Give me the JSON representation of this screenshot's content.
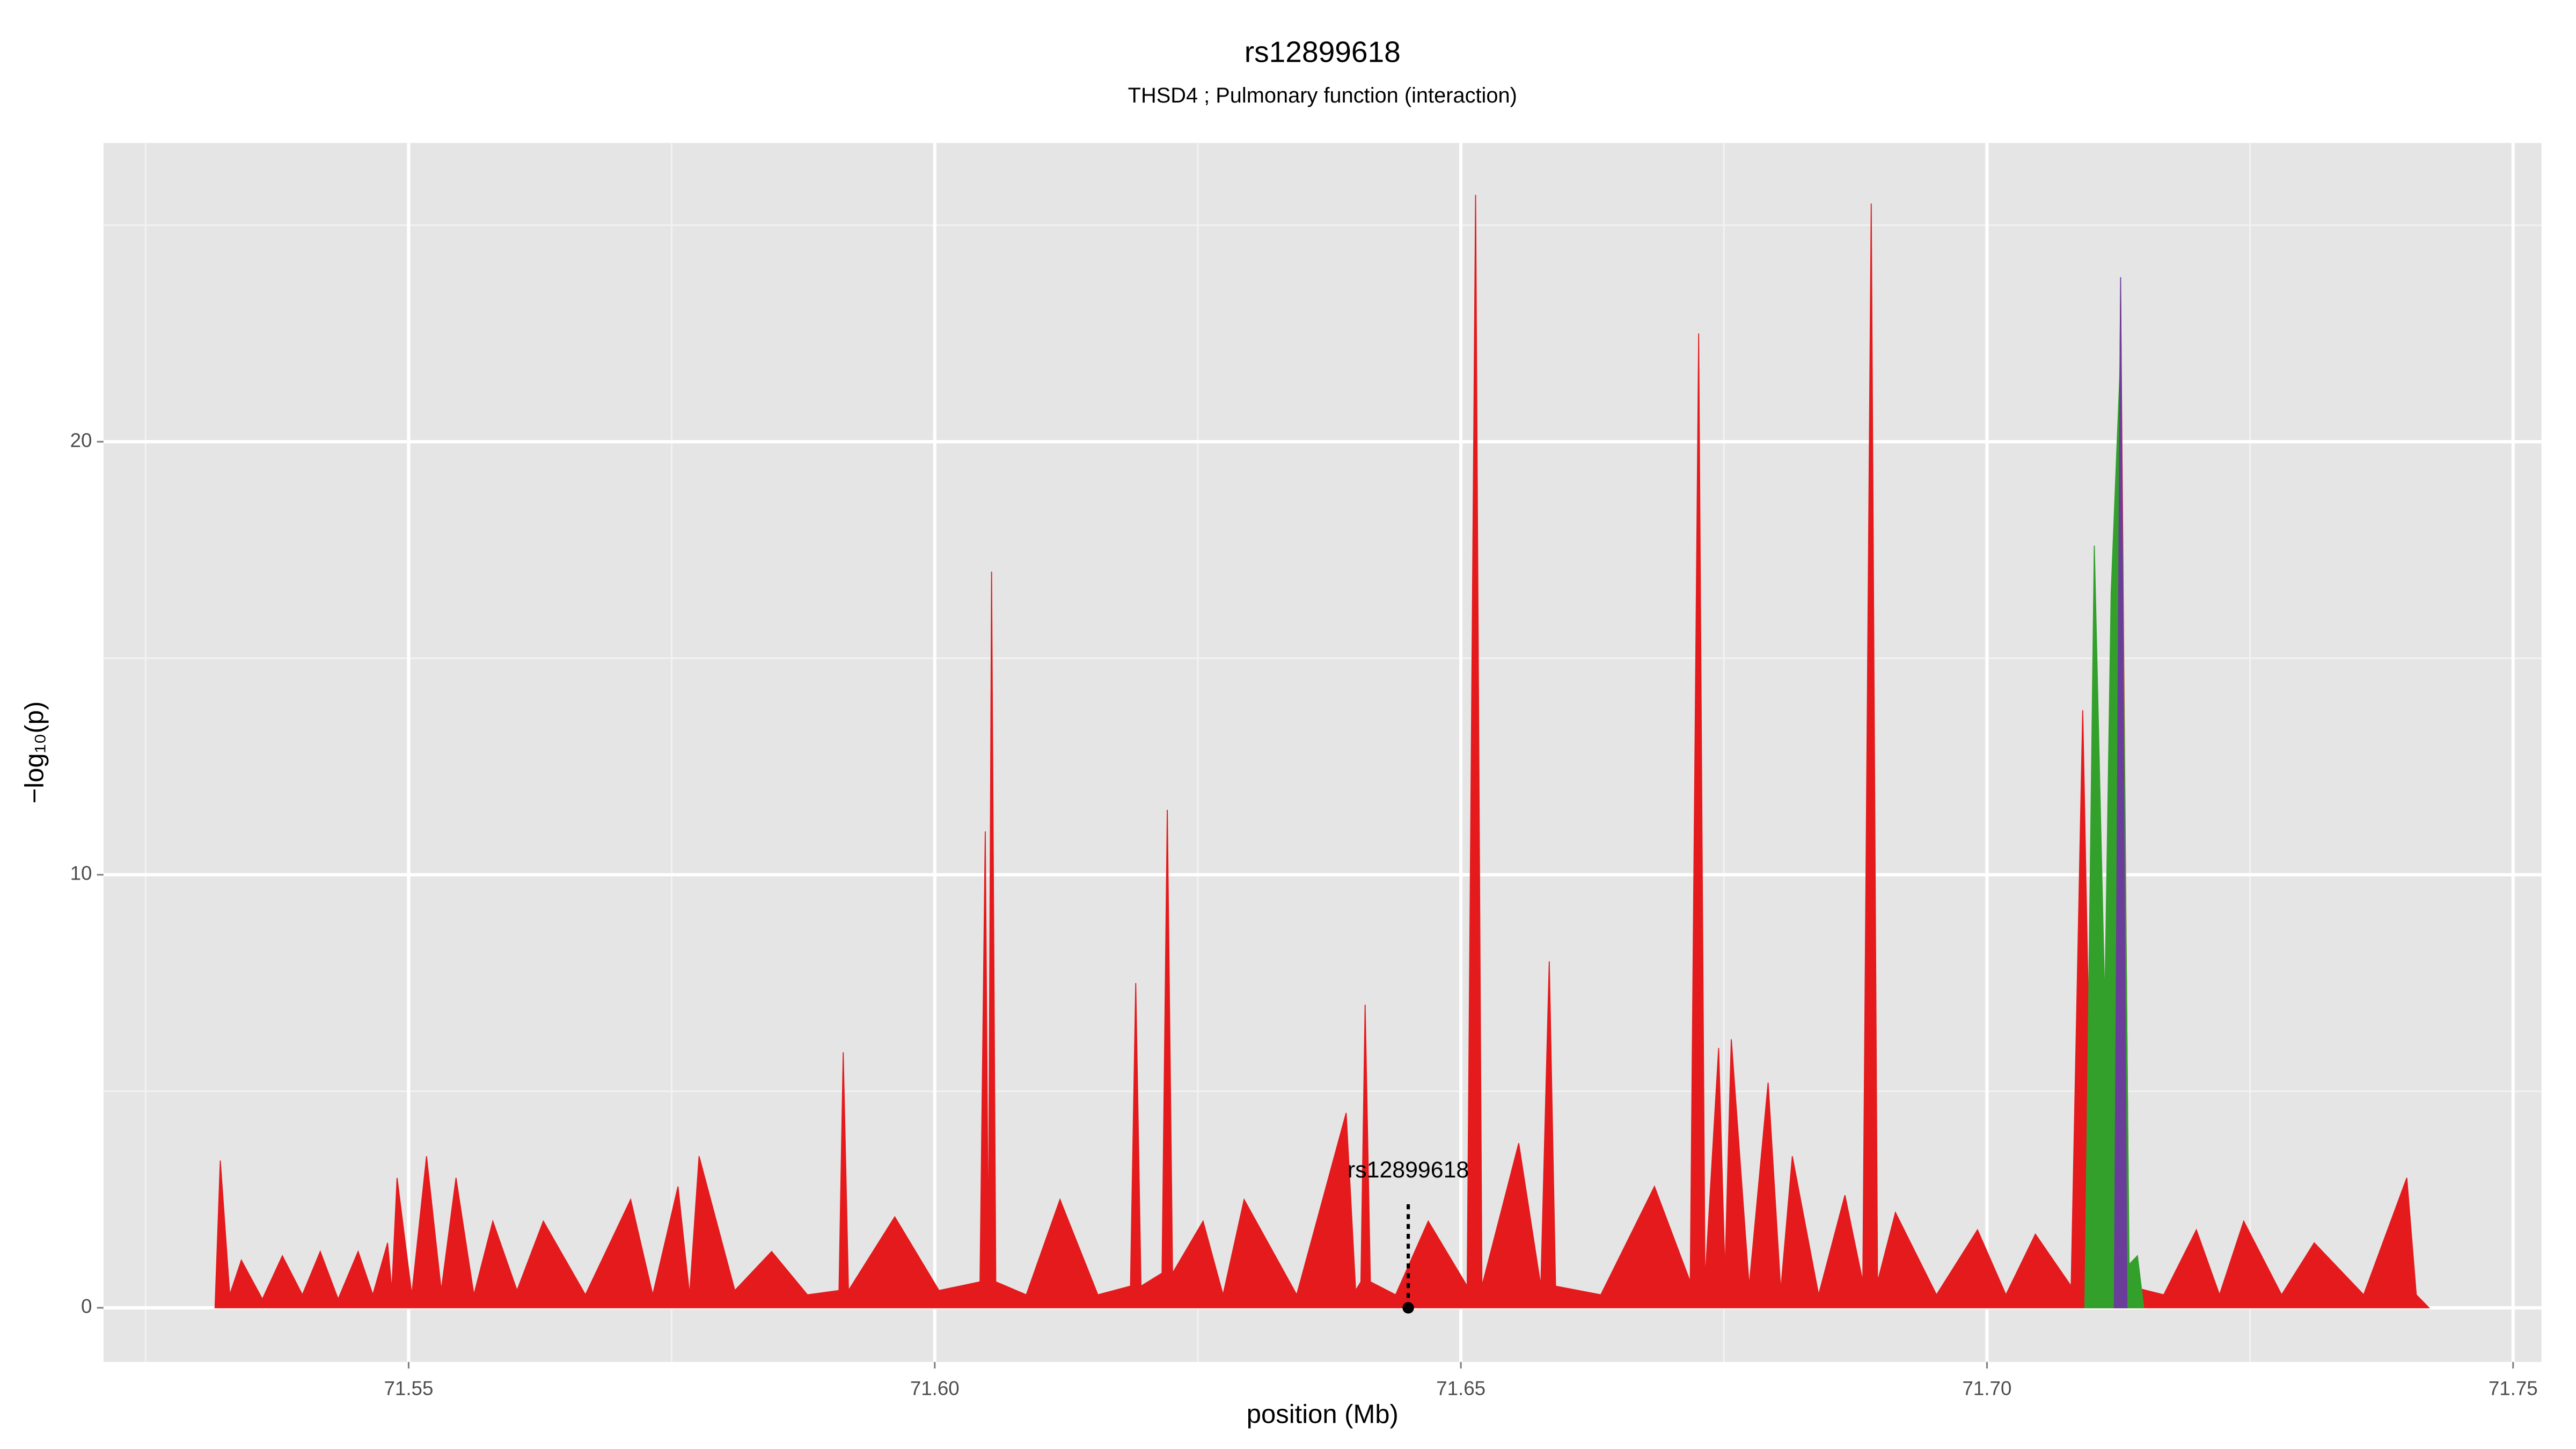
{
  "chart_data": {
    "type": "area",
    "title": "rs12899618",
    "subtitle": "THSD4 ; Pulmonary function (interaction)",
    "xlabel": "position (Mb)",
    "ylabel": "−log₁₀(p)",
    "xlim": [
      71.521,
      71.7527
    ],
    "ylim": [
      -1.25,
      26.9
    ],
    "xticks": [
      71.55,
      {
        "value": 71.6,
        "label": "71.60"
      },
      71.65,
      {
        "value": 71.7,
        "label": "71.70"
      },
      71.75
    ],
    "yticks": [
      0,
      10,
      20
    ],
    "xticks_minor": [
      71.525,
      71.575,
      71.625,
      71.675,
      71.725
    ],
    "yticks_minor": [
      5,
      15,
      25
    ],
    "grid": true,
    "annotation": {
      "text": "rs12899618",
      "x": 71.645,
      "y": 0
    },
    "series": [
      {
        "color": "#e41a1c",
        "x": [
          71.5316,
          71.5321,
          71.533,
          71.5341,
          71.5361,
          71.538,
          71.5399,
          71.5416,
          71.5433,
          71.5452,
          71.5466,
          71.548,
          71.5484,
          71.5489,
          71.5503,
          71.5517,
          71.5531,
          71.5545,
          71.5562,
          71.558,
          71.5603,
          71.5628,
          71.5668,
          71.5711,
          71.5732,
          71.5756,
          71.5767,
          71.5776,
          71.581,
          71.5845,
          71.5879,
          71.5909,
          71.5913,
          71.5918,
          71.5962,
          71.6004,
          71.6043,
          71.6048,
          71.6051,
          71.6054,
          71.6058,
          71.6087,
          71.6119,
          71.6155,
          71.6186,
          71.6191,
          71.6196,
          71.6216,
          71.6221,
          71.6226,
          71.6255,
          71.6274,
          71.6294,
          71.6344,
          71.6391,
          71.64,
          71.6405,
          71.6409,
          71.6414,
          71.6438,
          71.6469,
          71.6506,
          71.6514,
          71.652,
          71.6555,
          71.6576,
          71.6584,
          71.659,
          71.6633,
          71.6684,
          71.6718,
          71.6726,
          71.6732,
          71.6745,
          71.6751,
          71.6757,
          71.6774,
          71.6792,
          71.6804,
          71.6815,
          71.684,
          71.6865,
          71.6882,
          71.689,
          71.6896,
          71.6913,
          71.6952,
          71.6991,
          71.7018,
          71.7046,
          71.708,
          71.7091,
          71.7101,
          71.7119,
          71.7127,
          71.7135,
          71.7168,
          71.7199,
          71.7221,
          71.7244,
          71.728,
          71.7311,
          71.7358,
          71.7399,
          71.7408,
          71.742
        ],
        "values": [
          0,
          3.4,
          0.3,
          1.1,
          0.2,
          1.2,
          0.3,
          1.3,
          0.2,
          1.3,
          0.3,
          1.5,
          0.4,
          3.0,
          0.3,
          3.5,
          0.4,
          3.0,
          0.3,
          2.0,
          0.4,
          2.0,
          0.3,
          2.5,
          0.3,
          2.8,
          0.3,
          3.5,
          0.4,
          1.3,
          0.3,
          0.4,
          5.9,
          0.4,
          2.1,
          0.4,
          0.6,
          11.0,
          1.0,
          17.0,
          0.6,
          0.3,
          2.5,
          0.3,
          0.5,
          7.5,
          0.5,
          0.8,
          11.5,
          0.8,
          2.0,
          0.3,
          2.5,
          0.3,
          4.5,
          0.4,
          0.6,
          7.0,
          0.6,
          0.3,
          2.0,
          0.5,
          25.7,
          0.5,
          3.8,
          0.5,
          8.0,
          0.5,
          0.3,
          2.8,
          0.6,
          22.5,
          0.6,
          6.0,
          0.8,
          6.2,
          0.5,
          5.2,
          0.4,
          3.5,
          0.3,
          2.6,
          0.6,
          25.5,
          0.6,
          2.2,
          0.3,
          1.8,
          0.3,
          1.7,
          0.5,
          13.8,
          1.0,
          1.0,
          23.5,
          0.5,
          0.3,
          1.8,
          0.3,
          2.0,
          0.3,
          1.5,
          0.3,
          3.0,
          0.3,
          0
        ]
      },
      {
        "color": "#33a02c",
        "x": [
          71.7093,
          71.7102,
          71.7112,
          71.7118,
          71.7127,
          71.7135,
          71.7143,
          71.7149
        ],
        "values": [
          0,
          17.6,
          7,
          16.5,
          22,
          1.0,
          1.2,
          0
        ]
      },
      {
        "color": "#6a3d9a",
        "x": [
          71.7121,
          71.7127,
          71.7133
        ],
        "values": [
          0,
          23.8,
          0
        ]
      }
    ]
  }
}
